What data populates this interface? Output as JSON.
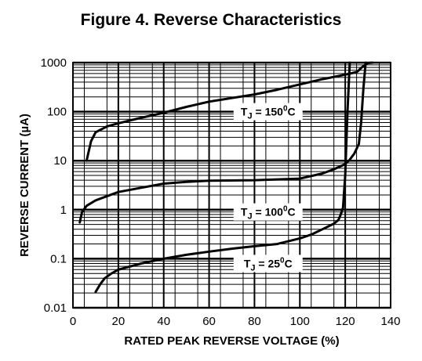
{
  "chart_data": {
    "type": "line",
    "title": "Figure 4. Reverse Characteristics",
    "xlabel": "RATED PEAK REVERSE VOLTAGE (%)",
    "ylabel": "REVERSE CURRENT (µA)",
    "y_scale": "log",
    "xlim": [
      0,
      140
    ],
    "ylim": [
      0.01,
      1000
    ],
    "x_ticks": [
      "0",
      "20",
      "40",
      "60",
      "80",
      "100",
      "120",
      "140"
    ],
    "y_ticks": [
      "0.01",
      "0.1",
      "1",
      "10",
      "100",
      "1000"
    ],
    "grid": true,
    "series": [
      {
        "name": "T_J = 150°C",
        "x": [
          6,
          8,
          10,
          15,
          20,
          30,
          40,
          50,
          60,
          70,
          80,
          90,
          100,
          110,
          120,
          125,
          126,
          127,
          128,
          129,
          130,
          132
        ],
        "y": [
          10,
          25,
          38,
          50,
          58,
          75,
          95,
          125,
          160,
          190,
          225,
          280,
          360,
          460,
          570,
          640,
          700,
          780,
          850,
          920,
          980,
          1000
        ]
      },
      {
        "name": "T_J = 100°C",
        "x": [
          3,
          4,
          6,
          10,
          20,
          30,
          40,
          50,
          60,
          80,
          100,
          110,
          115,
          120,
          122,
          124,
          126,
          127,
          128,
          129
        ],
        "y": [
          0.55,
          0.9,
          1.2,
          1.55,
          2.3,
          2.8,
          3.4,
          3.7,
          3.9,
          4.0,
          4.3,
          5.5,
          6.7,
          8.5,
          10.5,
          14,
          22,
          60,
          300,
          1000
        ]
      },
      {
        "name": "T_J = 25°C",
        "x": [
          10,
          12,
          14,
          17,
          20,
          30,
          40,
          50,
          60,
          70,
          80,
          90,
          100,
          105,
          110,
          115,
          117,
          118,
          119,
          120,
          121,
          122
        ],
        "y": [
          0.021,
          0.03,
          0.04,
          0.05,
          0.06,
          0.08,
          0.1,
          0.12,
          0.14,
          0.16,
          0.18,
          0.2,
          0.26,
          0.31,
          0.4,
          0.52,
          0.62,
          0.8,
          1.1,
          5,
          100,
          1000
        ]
      }
    ],
    "annotations": [
      {
        "label": "T",
        "sub": "J",
        "rest": " = 150",
        "sup": "0",
        "tail": "C",
        "x": 86,
        "y": 100
      },
      {
        "label": "T",
        "sub": "J",
        "rest": " = 100",
        "sup": "0",
        "tail": "C",
        "x": 86,
        "y": 0.9
      },
      {
        "label": "T",
        "sub": "J",
        "rest": " = 25",
        "sup": "0",
        "tail": "C",
        "x": 86,
        "y": 0.08
      }
    ]
  }
}
